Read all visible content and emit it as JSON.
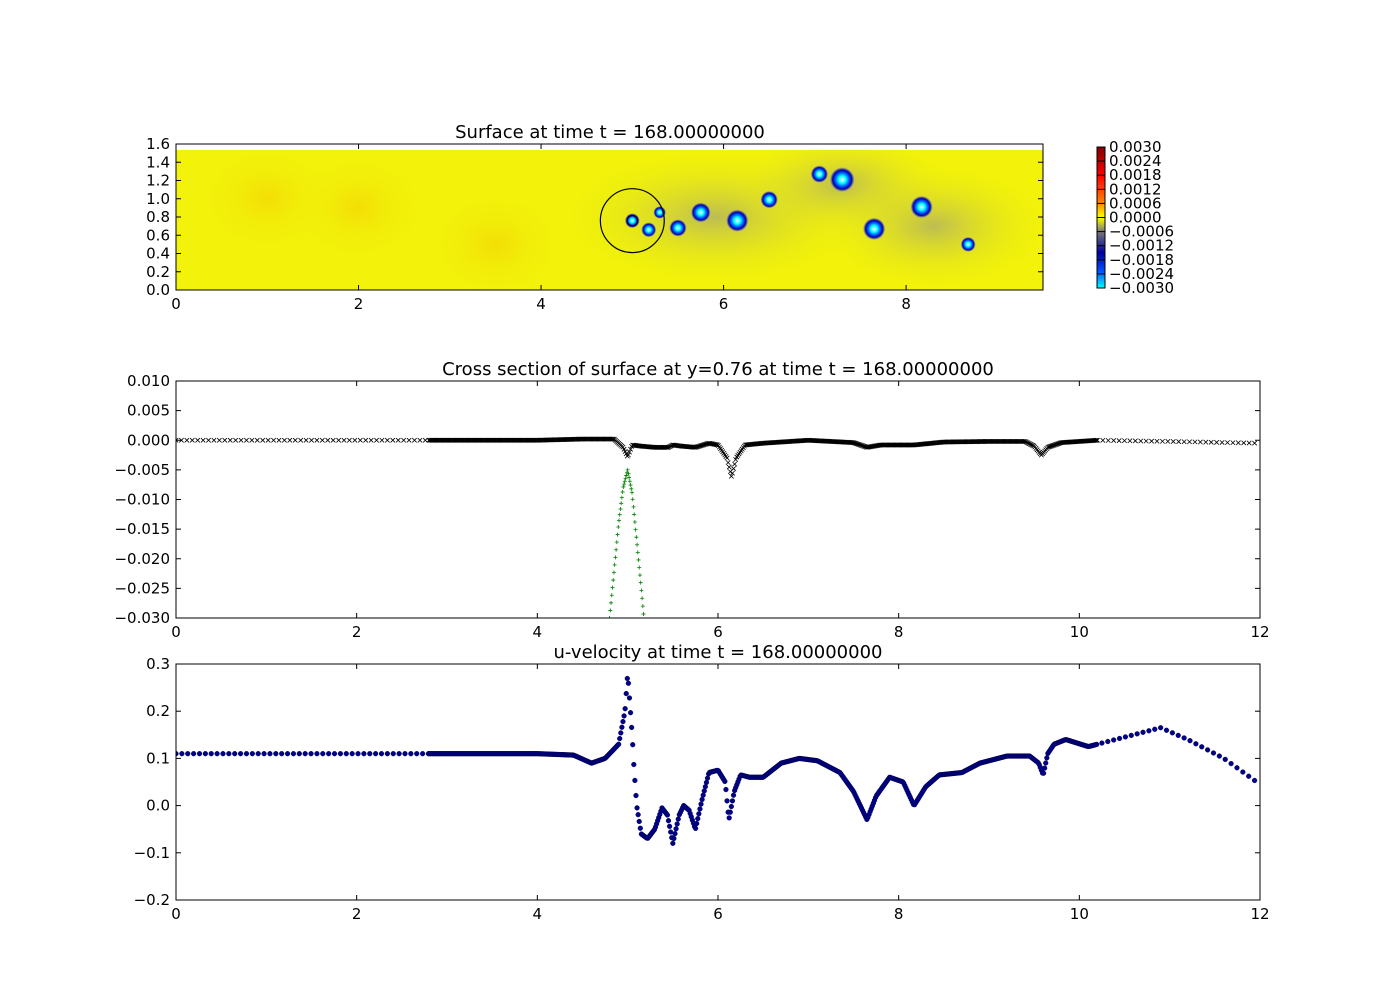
{
  "chart_data": [
    {
      "type": "heatmap",
      "title": "Surface at time t =   168.00000000",
      "xlim": [
        0,
        9.5
      ],
      "ylim": [
        0,
        1.6
      ],
      "x_ticks": [
        "0",
        "2",
        "4",
        "6",
        "8"
      ],
      "y_ticks": [
        "0.0",
        "0.2",
        "0.4",
        "0.6",
        "0.8",
        "1.0",
        "1.2",
        "1.4",
        "1.6"
      ],
      "colorbar": {
        "range": [
          -0.003,
          0.003
        ],
        "tick_labels": [
          "0.0030",
          "0.0024",
          "0.0018",
          "0.0012",
          "0.0006",
          "0.0000",
          "−0.0006",
          "−0.0012",
          "−0.0018",
          "−0.0024",
          "−0.0030"
        ],
        "colors": [
          "#00ffff",
          "#0050ff",
          "#0000a0",
          "#787878",
          "#ffff00",
          "#ff7800",
          "#ff0000",
          "#800000"
        ]
      },
      "background_color": "#f2f20a",
      "circle": {
        "center": [
          5.0,
          0.76
        ],
        "radius": 0.35
      },
      "vortices": [
        {
          "x": 5.0,
          "y": 0.76,
          "r": 0.06
        },
        {
          "x": 5.18,
          "y": 0.66,
          "r": 0.06
        },
        {
          "x": 5.3,
          "y": 0.85,
          "r": 0.05
        },
        {
          "x": 5.5,
          "y": 0.68,
          "r": 0.07
        },
        {
          "x": 5.75,
          "y": 0.85,
          "r": 0.08
        },
        {
          "x": 6.15,
          "y": 0.76,
          "r": 0.09
        },
        {
          "x": 6.5,
          "y": 0.99,
          "r": 0.07
        },
        {
          "x": 7.05,
          "y": 1.27,
          "r": 0.07
        },
        {
          "x": 7.3,
          "y": 1.21,
          "r": 0.1
        },
        {
          "x": 7.65,
          "y": 0.67,
          "r": 0.09
        },
        {
          "x": 8.17,
          "y": 0.91,
          "r": 0.09
        },
        {
          "x": 8.68,
          "y": 0.5,
          "r": 0.06
        }
      ]
    },
    {
      "type": "scatter",
      "title": "Cross section of surface at y=0.76 at time t =   168.00000000",
      "xlim": [
        0,
        12
      ],
      "ylim": [
        -0.03,
        0.01
      ],
      "x_ticks": [
        "0",
        "2",
        "4",
        "6",
        "8",
        "10",
        "12"
      ],
      "y_ticks": [
        "−0.030",
        "−0.025",
        "−0.020",
        "−0.015",
        "−0.010",
        "−0.005",
        "0.000",
        "0.005",
        "0.010"
      ],
      "series": [
        {
          "marker": "x",
          "color": "#000000",
          "points": [
            [
              0,
              0.0
            ],
            [
              1,
              0.0
            ],
            [
              2,
              0.0
            ],
            [
              2.8,
              0.0
            ],
            [
              3.5,
              0.0
            ],
            [
              4.0,
              0.0
            ],
            [
              4.5,
              0.0002
            ],
            [
              4.85,
              0.0002
            ],
            [
              4.95,
              -0.0012
            ],
            [
              5.0,
              -0.0028
            ],
            [
              5.05,
              -0.0008
            ],
            [
              5.15,
              -0.001
            ],
            [
              5.3,
              -0.0012
            ],
            [
              5.45,
              -0.0012
            ],
            [
              5.5,
              -0.0008
            ],
            [
              5.6,
              -0.001
            ],
            [
              5.75,
              -0.0012
            ],
            [
              5.9,
              -0.0005
            ],
            [
              6.0,
              -0.0008
            ],
            [
              6.1,
              -0.003
            ],
            [
              6.15,
              -0.0062
            ],
            [
              6.2,
              -0.003
            ],
            [
              6.3,
              -0.0008
            ],
            [
              6.5,
              -0.0005
            ],
            [
              7.0,
              0.0
            ],
            [
              7.5,
              -0.0004
            ],
            [
              7.65,
              -0.0012
            ],
            [
              7.8,
              -0.0008
            ],
            [
              8.17,
              -0.0008
            ],
            [
              8.5,
              -0.0003
            ],
            [
              9.0,
              -0.0002
            ],
            [
              9.4,
              -0.0002
            ],
            [
              9.5,
              -0.001
            ],
            [
              9.58,
              -0.0025
            ],
            [
              9.65,
              -0.0012
            ],
            [
              9.8,
              -0.0004
            ],
            [
              10.2,
              0.0
            ],
            [
              11,
              -0.0002
            ],
            [
              12,
              -0.0005
            ]
          ]
        },
        {
          "marker": "+",
          "color": "#008000",
          "points": [
            [
              4.8,
              -0.03
            ],
            [
              4.85,
              -0.022
            ],
            [
              4.9,
              -0.014
            ],
            [
              4.95,
              -0.008
            ],
            [
              5.0,
              -0.005
            ],
            [
              5.05,
              -0.009
            ],
            [
              5.1,
              -0.017
            ],
            [
              5.15,
              -0.025
            ],
            [
              5.18,
              -0.03
            ]
          ]
        }
      ]
    },
    {
      "type": "scatter",
      "title": "u-velocity at time t =   168.00000000",
      "xlim": [
        0,
        12
      ],
      "ylim": [
        -0.2,
        0.3
      ],
      "x_ticks": [
        "0",
        "2",
        "4",
        "6",
        "8",
        "10",
        "12"
      ],
      "y_ticks": [
        "−0.2",
        "−0.1",
        "0.0",
        "0.1",
        "0.2",
        "0.3"
      ],
      "series": [
        {
          "marker": "o",
          "color": "#00008b",
          "points": [
            [
              0,
              0.11
            ],
            [
              1,
              0.11
            ],
            [
              2,
              0.11
            ],
            [
              2.8,
              0.11
            ],
            [
              3.5,
              0.11
            ],
            [
              4.0,
              0.11
            ],
            [
              4.4,
              0.107
            ],
            [
              4.6,
              0.09
            ],
            [
              4.75,
              0.1
            ],
            [
              4.9,
              0.13
            ],
            [
              4.97,
              0.2
            ],
            [
              5.0,
              0.28
            ],
            [
              5.05,
              0.15
            ],
            [
              5.07,
              0.08
            ],
            [
              5.1,
              0.0
            ],
            [
              5.15,
              -0.06
            ],
            [
              5.22,
              -0.07
            ],
            [
              5.3,
              -0.05
            ],
            [
              5.38,
              -0.005
            ],
            [
              5.44,
              -0.02
            ],
            [
              5.5,
              -0.08
            ],
            [
              5.57,
              -0.02
            ],
            [
              5.62,
              0.0
            ],
            [
              5.68,
              -0.01
            ],
            [
              5.75,
              -0.05
            ],
            [
              5.82,
              0.01
            ],
            [
              5.9,
              0.07
            ],
            [
              6.0,
              0.075
            ],
            [
              6.08,
              0.05
            ],
            [
              6.12,
              -0.03
            ],
            [
              6.18,
              0.03
            ],
            [
              6.25,
              0.065
            ],
            [
              6.35,
              0.06
            ],
            [
              6.5,
              0.06
            ],
            [
              6.7,
              0.09
            ],
            [
              6.9,
              0.1
            ],
            [
              7.1,
              0.095
            ],
            [
              7.35,
              0.07
            ],
            [
              7.5,
              0.03
            ],
            [
              7.65,
              -0.03
            ],
            [
              7.75,
              0.02
            ],
            [
              7.9,
              0.06
            ],
            [
              8.05,
              0.05
            ],
            [
              8.17,
              0.0
            ],
            [
              8.3,
              0.04
            ],
            [
              8.45,
              0.065
            ],
            [
              8.7,
              0.07
            ],
            [
              8.9,
              0.09
            ],
            [
              9.2,
              0.105
            ],
            [
              9.45,
              0.105
            ],
            [
              9.55,
              0.09
            ],
            [
              9.6,
              0.065
            ],
            [
              9.65,
              0.11
            ],
            [
              9.72,
              0.13
            ],
            [
              9.85,
              0.14
            ],
            [
              10.1,
              0.125
            ],
            [
              10.5,
              0.145
            ],
            [
              10.9,
              0.165
            ],
            [
              11.2,
              0.14
            ],
            [
              11.6,
              0.1
            ],
            [
              12,
              0.045
            ]
          ]
        }
      ]
    }
  ]
}
